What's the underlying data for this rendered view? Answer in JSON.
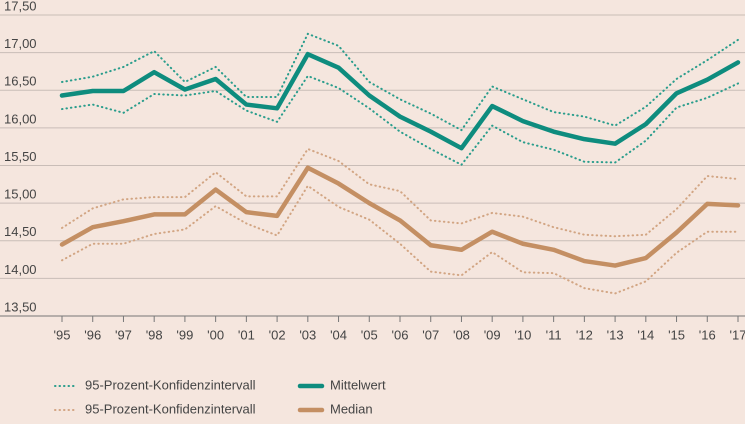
{
  "chart_data": {
    "type": "line",
    "categories": [
      "'95",
      "'96",
      "'97",
      "'98",
      "'99",
      "'00",
      "'01",
      "'02",
      "'03",
      "'04",
      "'05",
      "'06",
      "'07",
      "'08",
      "'09",
      "'10",
      "'11",
      "'12",
      "'13",
      "'14",
      "'15",
      "'16",
      "'17"
    ],
    "ylim": [
      13.5,
      17.5
    ],
    "yticks": [
      {
        "value": 13.5,
        "label": "13,50"
      },
      {
        "value": 14,
        "label": "14,00"
      },
      {
        "value": 14.5,
        "label": "14,50"
      },
      {
        "value": 15,
        "label": "15,00"
      },
      {
        "value": 15.5,
        "label": "15,50"
      },
      {
        "value": 16,
        "label": "16,00"
      },
      {
        "value": 16.5,
        "label": "16,50"
      },
      {
        "value": 17,
        "label": "17,00"
      },
      {
        "value": 17.5,
        "label": "17,50"
      }
    ],
    "grid": true,
    "legend": "bottom-left",
    "series": [
      {
        "name": "95-Prozent-Konfidenzintervall",
        "color": "#2a9d8c",
        "style": "dotted",
        "upper": [
          16.61,
          16.68,
          16.81,
          17.02,
          16.61,
          16.81,
          16.41,
          16.41,
          17.25,
          17.09,
          16.61,
          16.38,
          16.19,
          15.97,
          16.55,
          16.38,
          16.21,
          16.15,
          16.03,
          16.28,
          16.65,
          16.9,
          17.17
        ],
        "lower": [
          16.25,
          16.31,
          16.2,
          16.45,
          16.43,
          16.49,
          16.23,
          16.08,
          16.69,
          16.53,
          16.26,
          15.95,
          15.72,
          15.51,
          16.03,
          15.81,
          15.71,
          15.55,
          15.54,
          15.83,
          16.27,
          16.4,
          16.59
        ]
      },
      {
        "name": "Mittelwert",
        "color": "#0e8c7e",
        "style": "solid",
        "values": [
          16.43,
          16.49,
          16.49,
          16.74,
          16.51,
          16.65,
          16.31,
          16.26,
          16.98,
          16.8,
          16.43,
          16.15,
          15.95,
          15.73,
          16.29,
          16.09,
          15.95,
          15.85,
          15.79,
          16.05,
          16.46,
          16.64,
          16.87
        ]
      },
      {
        "name": "95-Prozent-Konfidenzintervall",
        "color": "#d2a583",
        "style": "dotted",
        "upper": [
          14.67,
          14.93,
          15.05,
          15.08,
          15.08,
          15.41,
          15.09,
          15.09,
          15.72,
          15.56,
          15.25,
          15.16,
          14.77,
          14.73,
          14.87,
          14.82,
          14.68,
          14.58,
          14.56,
          14.58,
          14.92,
          15.36,
          15.32
        ],
        "lower": [
          14.24,
          14.46,
          14.46,
          14.59,
          14.65,
          14.96,
          14.73,
          14.57,
          15.23,
          14.95,
          14.78,
          14.46,
          14.09,
          14.04,
          14.35,
          14.08,
          14.07,
          13.87,
          13.8,
          13.96,
          14.34,
          14.62,
          14.62
        ]
      },
      {
        "name": "Median",
        "color": "#c48f63",
        "style": "solid",
        "values": [
          14.45,
          14.68,
          14.76,
          14.85,
          14.85,
          15.18,
          14.88,
          14.83,
          15.47,
          15.26,
          15.0,
          14.77,
          14.44,
          14.38,
          14.62,
          14.46,
          14.38,
          14.23,
          14.17,
          14.27,
          14.61,
          14.99,
          14.97
        ]
      }
    ]
  }
}
